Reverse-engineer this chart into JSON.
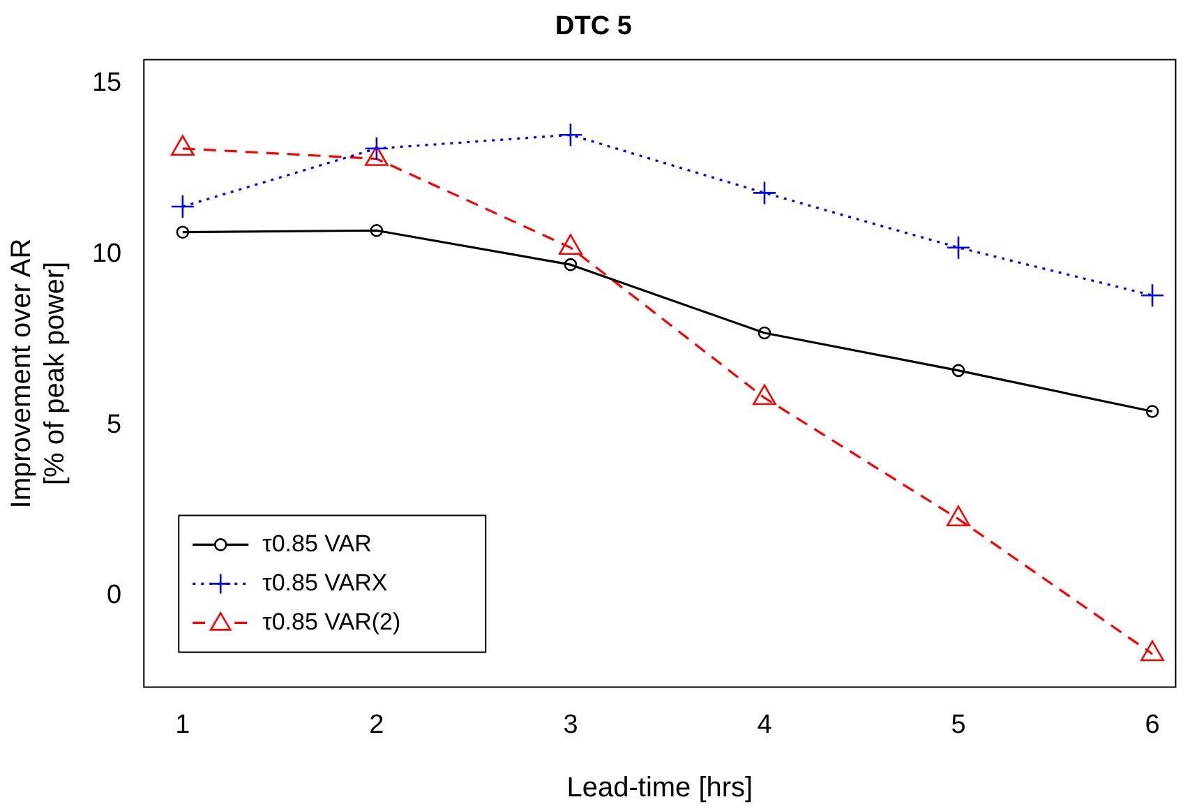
{
  "chart_data": {
    "type": "line",
    "title": "DTC 5",
    "xlabel": "Lead-time [hrs]",
    "ylabel": "Improvement over AR\n[% of peak power]",
    "x": [
      1,
      2,
      3,
      4,
      5,
      6
    ],
    "xlim": [
      0.8,
      6.12
    ],
    "xticks": [
      1,
      2,
      3,
      4,
      5,
      6
    ],
    "ylim": [
      -2.67,
      15.7
    ],
    "yticks": [
      0,
      5,
      10,
      15
    ],
    "grid": false,
    "legend": "bottom left",
    "series": [
      {
        "name": "τ0.85 VAR",
        "color": "#000000",
        "marker": "circle",
        "line_style": "solid",
        "values": [
          10.65,
          10.7,
          9.7,
          7.7,
          6.6,
          5.4
        ]
      },
      {
        "name": "τ0.85 VARX",
        "color": "#0000ff",
        "marker": "cross",
        "line_style": "dotted",
        "values": [
          11.4,
          13.1,
          13.5,
          11.8,
          10.2,
          8.8
        ]
      },
      {
        "name": "τ0.85 VAR(2)",
        "color": "#ff0000",
        "marker": "triangle",
        "line_style": "dashed",
        "values": [
          13.1,
          12.8,
          10.2,
          5.8,
          2.25,
          -1.7
        ]
      }
    ]
  }
}
